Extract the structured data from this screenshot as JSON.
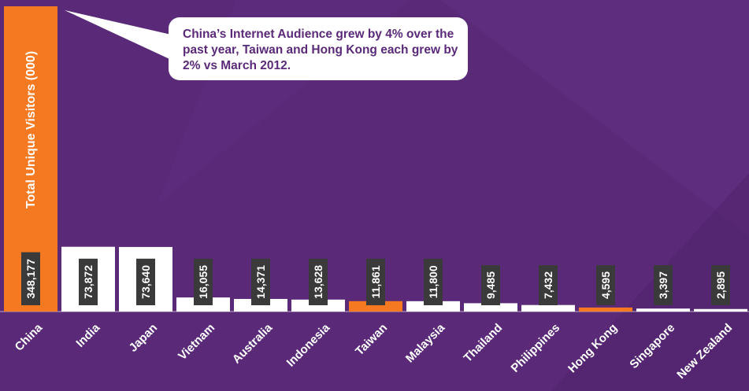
{
  "chart_data": {
    "type": "bar",
    "ylabel": "Total Unique Visitors (000)",
    "categories": [
      "China",
      "India",
      "Japan",
      "Vietnam",
      "Australia",
      "Indonesia",
      "Taiwan",
      "Malaysia",
      "Thailand",
      "Philippines",
      "Hong Kong",
      "Singapore",
      "New Zealand"
    ],
    "values": [
      348177,
      73872,
      73640,
      16055,
      14371,
      13628,
      11861,
      11800,
      9485,
      7432,
      4595,
      3397,
      2895
    ],
    "value_labels": [
      "348,177",
      "73,872",
      "73,640",
      "16,055",
      "14,371",
      "13,628",
      "11,861",
      "11,800",
      "9,485",
      "7,432",
      "4,595",
      "3,397",
      "2,895"
    ],
    "highlighted": [
      "China",
      "Taiwan",
      "Hong Kong"
    ],
    "grid": false,
    "ylim": [
      0,
      348177
    ]
  },
  "annotation": {
    "text": "China’s Internet Audience grew by 4% over the past year, Taiwan and Hong Kong each grew by 2% vs March 2012."
  },
  "colors": {
    "background": "#5a2a78",
    "bar_default": "#ffffff",
    "bar_highlight": "#f47920",
    "label_box": "#3a3a3a",
    "text": "#ffffff",
    "callout_text": "#5a2a78"
  }
}
